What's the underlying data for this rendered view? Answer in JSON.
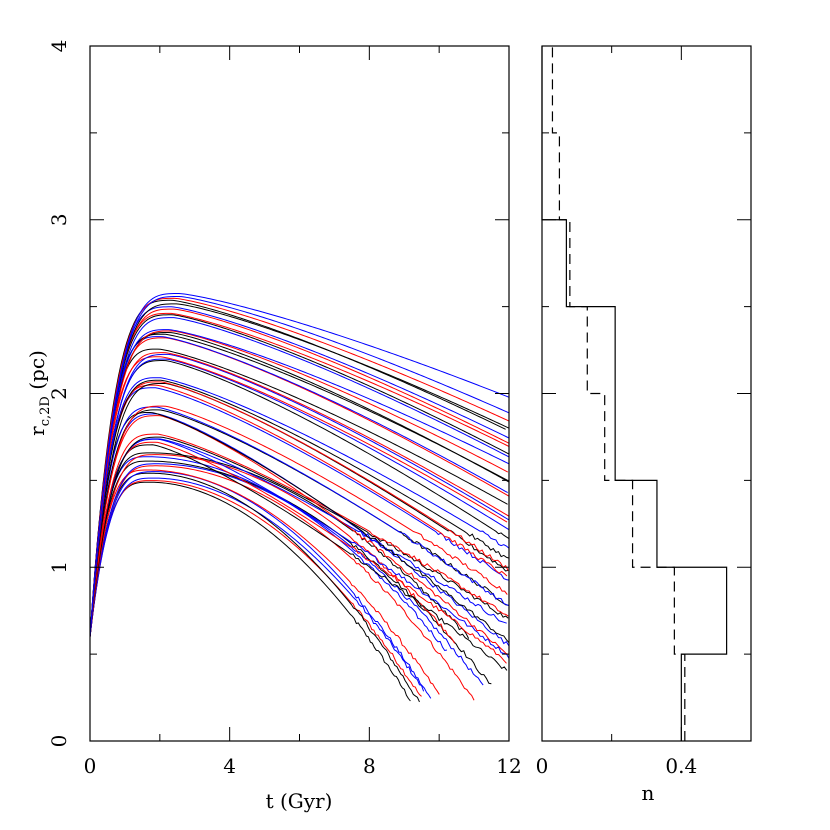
{
  "chart_data": [
    {
      "type": "line",
      "panel": "left",
      "xlabel": "t (Gyr)",
      "ylabel": {
        "main": "r",
        "subscript": "c,2D",
        "unit": " (pc)"
      },
      "xlim": [
        0,
        12
      ],
      "ylim": [
        0,
        4
      ],
      "xticks": [
        "0",
        "4",
        "8",
        "12"
      ],
      "yticks": [
        "0",
        "1",
        "2",
        "3",
        "4"
      ],
      "series_colors": {
        "black": "#000000",
        "red": "#ff0000",
        "blue": "#0000ff"
      },
      "families": [
        {
          "peak": 1.5,
          "t_peak": 1.8,
          "end": 0.25,
          "t_end": 9.4,
          "colors": [
            "black",
            "red",
            "blue"
          ]
        },
        {
          "peak": 1.55,
          "t_peak": 1.8,
          "end": 0.25,
          "t_end": 9.7,
          "colors": [
            "black",
            "blue",
            "red"
          ]
        },
        {
          "peak": 1.6,
          "t_peak": 1.8,
          "end": 0.3,
          "t_end": 11.2,
          "colors": [
            "red",
            "blue",
            "black"
          ]
        },
        {
          "peak": 1.65,
          "t_peak": 1.8,
          "end": 0.55,
          "t_end": 10.5,
          "colors": [
            "blue",
            "red",
            "black"
          ]
        },
        {
          "peak": 1.72,
          "t_peak": 1.9,
          "end": 0.45,
          "t_end": 12,
          "colors": [
            "black",
            "red",
            "blue"
          ]
        },
        {
          "peak": 1.75,
          "t_peak": 1.9,
          "end": 0.7,
          "t_end": 12,
          "colors": [
            "blue",
            "black",
            "red"
          ]
        },
        {
          "peak": 1.88,
          "t_peak": 1.9,
          "end": 0.55,
          "t_end": 12,
          "colors": [
            "red",
            "blue",
            "black"
          ]
        },
        {
          "peak": 1.92,
          "t_peak": 2.0,
          "end": 0.8,
          "t_end": 12,
          "colors": [
            "black",
            "blue",
            "red"
          ]
        },
        {
          "peak": 2.05,
          "t_peak": 2.0,
          "end": 0.95,
          "t_end": 12,
          "colors": [
            "blue",
            "red",
            "black"
          ]
        },
        {
          "peak": 2.08,
          "t_peak": 2.0,
          "end": 1.05,
          "t_end": 12,
          "colors": [
            "red",
            "black",
            "blue"
          ]
        },
        {
          "peak": 2.2,
          "t_peak": 2.1,
          "end": 1.2,
          "t_end": 12,
          "colors": [
            "black",
            "blue",
            "red"
          ]
        },
        {
          "peak": 2.24,
          "t_peak": 2.1,
          "end": 1.3,
          "t_end": 12,
          "colors": [
            "blue",
            "red",
            "black"
          ]
        },
        {
          "peak": 2.33,
          "t_peak": 2.2,
          "end": 1.45,
          "t_end": 12,
          "colors": [
            "red",
            "blue",
            "black"
          ]
        },
        {
          "peak": 2.36,
          "t_peak": 2.2,
          "end": 1.55,
          "t_end": 12,
          "colors": [
            "black",
            "red",
            "blue"
          ]
        },
        {
          "peak": 2.45,
          "t_peak": 2.3,
          "end": 1.65,
          "t_end": 12,
          "colors": [
            "blue",
            "black",
            "red"
          ]
        },
        {
          "peak": 2.5,
          "t_peak": 2.4,
          "end": 1.75,
          "t_end": 12,
          "colors": [
            "red",
            "blue",
            "black"
          ]
        },
        {
          "peak": 2.55,
          "t_peak": 2.5,
          "end": 1.85,
          "t_end": 12,
          "colors": [
            "black",
            "red",
            "blue"
          ]
        },
        {
          "peak": 2.59,
          "t_peak": 2.6,
          "end": 2.03,
          "t_end": 12,
          "colors": [
            "blue"
          ]
        }
      ]
    },
    {
      "type": "histogram",
      "panel": "right",
      "orientation": "horizontal",
      "xlabel": "n",
      "xlim": [
        0,
        0.6
      ],
      "xticks": [
        "0",
        "0.4"
      ],
      "ylim": [
        0,
        4
      ],
      "bin_edges": [
        0.5,
        1.0,
        1.5,
        2.0,
        2.5,
        3.0,
        3.5,
        4.0
      ],
      "series": [
        {
          "name": "solid",
          "style": "solid",
          "bins": [
            {
              "y0": 0.0,
              "y1": 0.5,
              "n": 0.4
            },
            {
              "y0": 0.5,
              "y1": 1.0,
              "n": 0.53
            },
            {
              "y0": 1.0,
              "y1": 1.5,
              "n": 0.33
            },
            {
              "y0": 1.5,
              "y1": 2.5,
              "n": 0.21
            },
            {
              "y0": 2.5,
              "y1": 3.0,
              "n": 0.07
            },
            {
              "y0": 3.0,
              "y1": 4.0,
              "n": 0.0
            }
          ]
        },
        {
          "name": "dashed",
          "style": "dashed",
          "bins": [
            {
              "y0": 0.0,
              "y1": 0.5,
              "n": 0.41
            },
            {
              "y0": 0.5,
              "y1": 1.0,
              "n": 0.38
            },
            {
              "y0": 1.0,
              "y1": 1.5,
              "n": 0.26
            },
            {
              "y0": 1.5,
              "y1": 2.0,
              "n": 0.18
            },
            {
              "y0": 2.0,
              "y1": 2.5,
              "n": 0.13
            },
            {
              "y0": 2.5,
              "y1": 3.0,
              "n": 0.08
            },
            {
              "y0": 3.0,
              "y1": 3.5,
              "n": 0.05
            },
            {
              "y0": 3.5,
              "y1": 4.0,
              "n": 0.03
            }
          ]
        }
      ]
    }
  ]
}
